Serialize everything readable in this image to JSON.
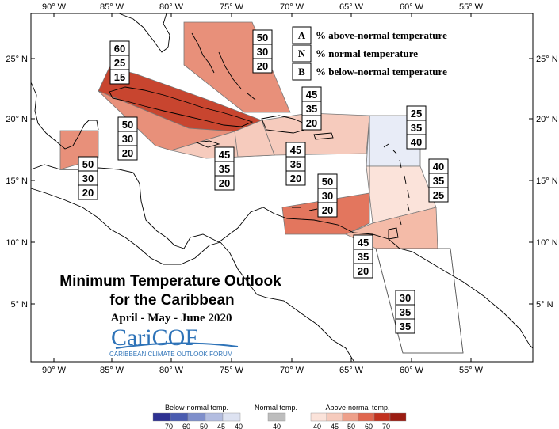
{
  "title": {
    "line1": "Minimum Temperature Outlook",
    "line2": "for the Caribbean",
    "period": "April - May - June 2020"
  },
  "logo": {
    "name": "CariCOF",
    "subtitle": "CARIBBEAN CLIMATE OUTLOOK FORUM"
  },
  "key": [
    {
      "letter": "A",
      "text": "% above-normal temperature"
    },
    {
      "letter": "N",
      "text": "% normal temperature"
    },
    {
      "letter": "B",
      "text": "% below-normal temperature"
    }
  ],
  "axes": {
    "lon_labels": [
      "90° W",
      "85° W",
      "80° W",
      "75° W",
      "70° W",
      "65° W",
      "60° W",
      "55° W"
    ],
    "lat_labels": [
      "25° N",
      "20° N",
      "15° N",
      "10° N",
      "5° N"
    ]
  },
  "regions": [
    {
      "id": "bahamas",
      "probs": [
        "50",
        "30",
        "20"
      ],
      "color": "#e8907a"
    },
    {
      "id": "cuba",
      "probs": [
        "60",
        "25",
        "15"
      ],
      "color": "#c8452f"
    },
    {
      "id": "cayman",
      "probs": [
        "50",
        "30",
        "20"
      ],
      "color": "#e8907a"
    },
    {
      "id": "belize",
      "probs": [
        "50",
        "30",
        "20"
      ],
      "color": "#e8907a"
    },
    {
      "id": "jamaica",
      "probs": [
        "45",
        "35",
        "20"
      ],
      "color": "#f6cbbd"
    },
    {
      "id": "hispaniola",
      "probs": [
        "45",
        "35",
        "20"
      ],
      "color": "#f6cbbd"
    },
    {
      "id": "turks-caicos",
      "probs": [
        "45",
        "35",
        "20"
      ],
      "color": "#f6cbbd"
    },
    {
      "id": "leeward",
      "probs": [
        "25",
        "35",
        "40"
      ],
      "color": "#e8ecf7"
    },
    {
      "id": "windward",
      "probs": [
        "40",
        "35",
        "25"
      ],
      "color": "#fbe3da"
    },
    {
      "id": "abc-islands",
      "probs": [
        "50",
        "30",
        "20"
      ],
      "color": "#e3765e"
    },
    {
      "id": "trinidad",
      "probs": [
        "45",
        "35",
        "20"
      ],
      "color": "#f4bba8"
    },
    {
      "id": "guianas",
      "probs": [
        "30",
        "35",
        "35"
      ],
      "color": "#ffffff"
    }
  ],
  "legend": {
    "below": {
      "title": "Below-normal temp.",
      "ticks": [
        "70",
        "60",
        "50",
        "45",
        "40"
      ],
      "colors": [
        "#2e3192",
        "#4a5cb0",
        "#7f8fcb",
        "#b3bde0",
        "#dde2f1"
      ]
    },
    "normal": {
      "title": "Normal temp.",
      "ticks": [
        "40"
      ],
      "colors": [
        "#bdbdbd"
      ]
    },
    "above": {
      "title": "Above-normal temp.",
      "ticks": [
        "40",
        "45",
        "50",
        "60",
        "70"
      ],
      "colors": [
        "#fbe3da",
        "#f6cbbd",
        "#eea08a",
        "#e0674f",
        "#c2321f",
        "#9b1c12"
      ]
    }
  }
}
